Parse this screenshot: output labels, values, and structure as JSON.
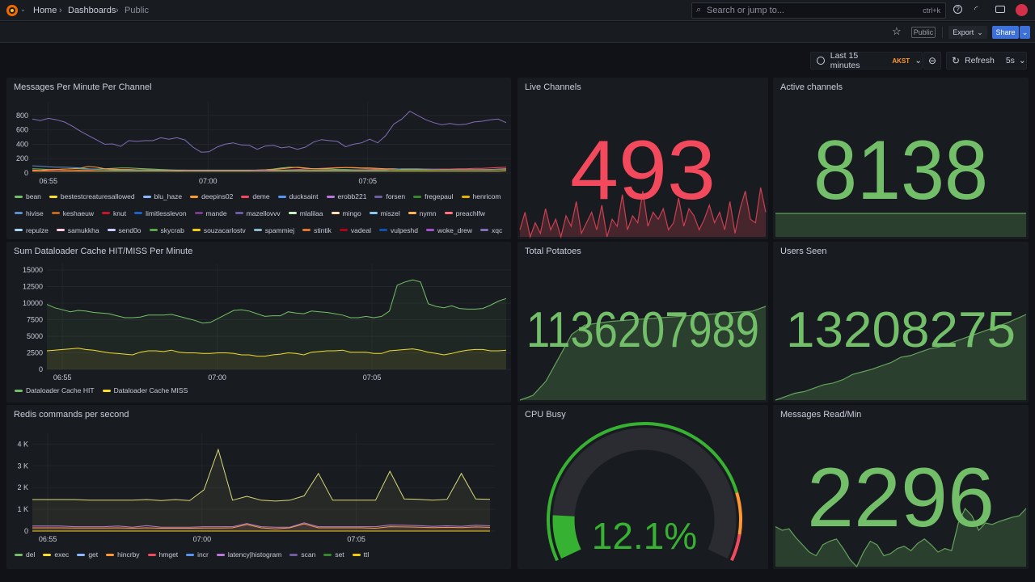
{
  "nav": {
    "breadcrumb": [
      "Home",
      "Dashboards",
      "Public"
    ],
    "search_placeholder": "Search or jump to...",
    "search_shortcut": "ctrl+k"
  },
  "toolbar": {
    "public_badge": "Public",
    "export_label": "Export",
    "share_label": "Share"
  },
  "time": {
    "range_label": "Last 15 minutes",
    "timezone": "AKST",
    "refresh_label": "Refresh",
    "refresh_interval": "5s"
  },
  "colors": {
    "green": "#73bf69",
    "red": "#f2495c",
    "orange": "#ff9830",
    "blue": "#3d71d9",
    "bg": "#111217",
    "panel": "#181b1f"
  },
  "panels": {
    "messages": {
      "title": "Messages Per Minute Per Channel"
    },
    "cache": {
      "title": "Sum Dataloader Cache HIT/MISS Per Minute"
    },
    "redis": {
      "title": "Redis commands per second"
    },
    "live": {
      "title": "Live Channels",
      "value": "493",
      "color": "#f2495c",
      "sparkline": [
        30,
        55,
        20,
        40,
        25,
        60,
        30,
        45,
        20,
        50,
        35,
        70,
        25,
        40,
        55,
        30,
        65,
        20,
        45,
        35,
        80,
        30,
        50,
        40,
        85,
        35,
        55,
        45,
        60,
        30,
        40,
        75,
        35,
        60,
        50,
        30,
        45,
        65,
        40,
        55,
        30,
        70,
        25,
        60,
        85,
        45,
        40,
        90,
        55
      ]
    },
    "active": {
      "title": "Active channels",
      "value": "8138",
      "color": "#73bf69",
      "sparkline": [
        50,
        50,
        50,
        50,
        50,
        50,
        50,
        50,
        50,
        50
      ]
    },
    "potatoes": {
      "title": "Total Potatoes",
      "value": "1136207989",
      "color": "#73bf69",
      "sparkline": [
        0,
        5,
        20,
        45,
        70,
        80,
        82,
        84,
        85,
        86,
        87,
        88,
        89,
        90,
        91,
        92,
        93,
        94,
        95,
        100
      ]
    },
    "users": {
      "title": "Users Seen",
      "value": "13208275",
      "color": "#73bf69",
      "sparkline": [
        0,
        4,
        8,
        10,
        14,
        18,
        20,
        24,
        30,
        33,
        36,
        40,
        44,
        50,
        52,
        56,
        60,
        62,
        66,
        70,
        74,
        78,
        82,
        86,
        90,
        95,
        100
      ]
    },
    "cpu": {
      "title": "CPU Busy",
      "value": "12.1%",
      "percent": 12.1,
      "thresholds": [
        {
          "color": "#37b131",
          "to": 82
        },
        {
          "color": "#ff9830",
          "to": 93
        },
        {
          "color": "#f2495c",
          "to": 100
        }
      ]
    },
    "read": {
      "title": "Messages Read/Min",
      "value": "2296",
      "color": "#73bf69",
      "sparkline": [
        55,
        50,
        52,
        40,
        30,
        20,
        15,
        30,
        35,
        38,
        25,
        10,
        0,
        20,
        35,
        30,
        15,
        18,
        25,
        28,
        22,
        32,
        38,
        30,
        20,
        25,
        22,
        60,
        80,
        70,
        50,
        60,
        58,
        62,
        65,
        68,
        70,
        80
      ]
    }
  },
  "chart_data": [
    {
      "type": "line",
      "title": "Messages Per Minute Per Channel",
      "x_range": [
        "06:54:30",
        "07:09:20"
      ],
      "x_ticks": [
        "06:55",
        "07:00",
        "07:05"
      ],
      "y_ticks": [
        "0",
        "200",
        "400",
        "600",
        "800"
      ],
      "ylim": [
        0,
        900
      ],
      "grid": true,
      "legend": "bottom",
      "legend_items": [
        [
          "bean",
          "#73bf69"
        ],
        [
          "bestestcreaturesallowed",
          "#fade2a"
        ],
        [
          "blu_haze",
          "#8ab8ff"
        ],
        [
          "deepins02",
          "#ff9830"
        ],
        [
          "deme",
          "#f2495c"
        ],
        [
          "ducksaint",
          "#5794f2"
        ],
        [
          "erobb221",
          "#b877d9"
        ],
        [
          "forsen",
          "#705da0"
        ],
        [
          "fregepaul",
          "#37872d"
        ],
        [
          "henricom",
          "#e0b400"
        ],
        [
          "hivise",
          "#5e8ec9"
        ],
        [
          "keshaeuw",
          "#c4641d"
        ],
        [
          "knut",
          "#c4162a"
        ],
        [
          "limitlesslevon",
          "#1f60c4"
        ],
        [
          "mande",
          "#7a3b8f"
        ],
        [
          "mazellovvv",
          "#6c5ca8"
        ],
        [
          "mlalilaa",
          "#c8f2c2"
        ],
        [
          "mingo",
          "#ffe0b2"
        ],
        [
          "miszel",
          "#8ac8f0"
        ],
        [
          "nymn",
          "#ffb357"
        ],
        [
          "preachlfw",
          "#ff7383"
        ],
        [
          "repulze",
          "#a8d4f0"
        ],
        [
          "samukkha",
          "#ffcce0"
        ],
        [
          "send0o",
          "#ccccff"
        ],
        [
          "skycrab",
          "#56a64b"
        ],
        [
          "souzacarlostv",
          "#f2cc0c"
        ],
        [
          "spammiej",
          "#8ab8d0"
        ],
        [
          "stintik",
          "#e0752d"
        ],
        [
          "vadeal",
          "#ad0317"
        ],
        [
          "vulpeshd",
          "#1250b0"
        ],
        [
          "woke_drew",
          "#a352cc"
        ],
        [
          "xqc",
          "#806eb7"
        ]
      ],
      "series": [
        {
          "name": "xqc",
          "color": "#806eb7",
          "values": [
            750,
            730,
            760,
            740,
            710,
            650,
            580,
            520,
            460,
            400,
            405,
            370,
            450,
            440,
            450,
            450,
            490,
            470,
            490,
            460,
            360,
            290,
            295,
            360,
            400,
            420,
            390,
            385,
            330,
            375,
            385,
            350,
            365,
            330,
            360,
            430,
            465,
            450,
            440,
            365,
            400,
            420,
            470,
            420,
            520,
            680,
            750,
            860,
            800,
            740,
            700,
            670,
            690,
            670,
            680,
            710,
            720,
            740,
            750,
            700
          ]
        },
        {
          "name": "hivise",
          "color": "#5e8ec9",
          "values": [
            100,
            95,
            85,
            80,
            80,
            75,
            70,
            60,
            50,
            45,
            40,
            40,
            40,
            40,
            40,
            40,
            40,
            40,
            40,
            40,
            40,
            40,
            40,
            40,
            40,
            40,
            40,
            40,
            40,
            40,
            40,
            40,
            40,
            40,
            40,
            40,
            40,
            40,
            40,
            40,
            40,
            40,
            40,
            40,
            40,
            50,
            60,
            60,
            60,
            55,
            50,
            45,
            45,
            45,
            45,
            45,
            45,
            45,
            50,
            50
          ]
        },
        {
          "name": "deepins02",
          "color": "#ff9830",
          "values": [
            40,
            35,
            45,
            50,
            55,
            60,
            70,
            90,
            80,
            60,
            55,
            50,
            50,
            45,
            45,
            40,
            40,
            40,
            35,
            35,
            35,
            35,
            35,
            35,
            35,
            35,
            35,
            35,
            40,
            45,
            50,
            60,
            70,
            80,
            70,
            60,
            60,
            65,
            70,
            75,
            75,
            70,
            70,
            65,
            60,
            60,
            55,
            55,
            55,
            50,
            50,
            50,
            50,
            50,
            50,
            50,
            50,
            50,
            55,
            60
          ]
        },
        {
          "name": "bean",
          "color": "#73bf69",
          "values": [
            60,
            55,
            50,
            50,
            55,
            60,
            60,
            55,
            55,
            60,
            65,
            70,
            70,
            65,
            60,
            55,
            50,
            45,
            40,
            40,
            35,
            35,
            35,
            35,
            35,
            35,
            35,
            35,
            40,
            45,
            55,
            70,
            80,
            75,
            65,
            60,
            55,
            55,
            50,
            50,
            45,
            45,
            45,
            45,
            45,
            45,
            45,
            45,
            45,
            45,
            45,
            45,
            45,
            45,
            45,
            45,
            45,
            50,
            50,
            55
          ]
        },
        {
          "name": "deme",
          "color": "#f2495c",
          "values": [
            30,
            30,
            30,
            30,
            35,
            35,
            40,
            40,
            45,
            45,
            50,
            50,
            50,
            45,
            45,
            40,
            40,
            35,
            35,
            30,
            30,
            30,
            30,
            30,
            30,
            30,
            30,
            30,
            30,
            30,
            35,
            40,
            45,
            50,
            55,
            60,
            65,
            70,
            75,
            75,
            70,
            65,
            60,
            55,
            55,
            55,
            55,
            55,
            55,
            55,
            55,
            55,
            55,
            60,
            60,
            65,
            65,
            70,
            75,
            80
          ]
        },
        {
          "name": "bestestcreaturesallowed",
          "color": "#fade2a",
          "values": [
            25,
            25,
            25,
            25,
            25,
            25,
            25,
            25,
            25,
            25,
            25,
            25,
            25,
            25,
            25,
            25,
            25,
            25,
            25,
            25,
            25,
            25,
            25,
            25,
            25,
            25,
            25,
            25,
            25,
            25,
            25,
            25,
            25,
            25,
            25,
            25,
            25,
            25,
            25,
            25,
            25,
            25,
            25,
            25,
            25,
            25,
            25,
            25,
            25,
            25,
            25,
            25,
            25,
            25,
            25,
            25,
            25,
            25,
            25,
            30
          ]
        }
      ]
    },
    {
      "type": "area",
      "title": "Sum Dataloader Cache HIT/MISS Per Minute",
      "x_range": [
        "06:54:30",
        "07:09:20"
      ],
      "x_ticks": [
        "06:55",
        "07:00",
        "07:05"
      ],
      "y_ticks": [
        "0",
        "2500",
        "5000",
        "7500",
        "10000",
        "12500",
        "15000"
      ],
      "ylim": [
        0,
        15000
      ],
      "grid": true,
      "legend": "bottom",
      "series": [
        {
          "name": "Dataloader Cache HIT",
          "color": "#73bf69",
          "values": [
            9800,
            9300,
            9000,
            8700,
            8900,
            8800,
            8600,
            8500,
            8400,
            8100,
            7800,
            7800,
            7900,
            8200,
            8200,
            8200,
            8300,
            8000,
            7700,
            7400,
            7000,
            7100,
            7700,
            8300,
            8900,
            9000,
            8800,
            8400,
            8000,
            8100,
            8100,
            8700,
            8500,
            8400,
            8800,
            8700,
            8600,
            8400,
            8200,
            7800,
            7800,
            8000,
            7800,
            8000,
            8800,
            12700,
            13200,
            13500,
            13200,
            9900,
            9500,
            9300,
            9600,
            9200,
            9100,
            9100,
            9200,
            9700,
            10300,
            10700
          ]
        },
        {
          "name": "Dataloader Cache MISS",
          "color": "#fade2a",
          "values": [
            2800,
            2900,
            3000,
            3100,
            3200,
            3000,
            2900,
            2700,
            2500,
            2400,
            2300,
            2200,
            2600,
            2800,
            2800,
            2700,
            2900,
            2600,
            2500,
            2500,
            2400,
            2400,
            2500,
            2500,
            2400,
            2200,
            2200,
            2000,
            2000,
            2200,
            2300,
            2500,
            2400,
            2200,
            2600,
            2700,
            2800,
            2800,
            2900,
            2600,
            2600,
            2600,
            2400,
            2400,
            2800,
            2900,
            3000,
            3100,
            2900,
            2600,
            2400,
            2200,
            2400,
            2700,
            2900,
            3000,
            3000,
            2800,
            2800,
            2900
          ]
        }
      ]
    },
    {
      "type": "area",
      "title": "Redis commands per second",
      "x_range": [
        "06:54:30",
        "07:09:20"
      ],
      "x_ticks": [
        "06:55",
        "07:00",
        "07:05"
      ],
      "y_ticks": [
        "0",
        "1 K",
        "2 K",
        "3 K",
        "4 K"
      ],
      "ylim": [
        0,
        4200
      ],
      "grid": true,
      "legend": "bottom",
      "legend_items": [
        [
          "del",
          "#73bf69"
        ],
        [
          "exec",
          "#fade2a"
        ],
        [
          "get",
          "#8ab8ff"
        ],
        [
          "hincrby",
          "#ff9830"
        ],
        [
          "hmget",
          "#f2495c"
        ],
        [
          "incr",
          "#5794f2"
        ],
        [
          "latency|histogram",
          "#b877d9"
        ],
        [
          "scan",
          "#705da0"
        ],
        [
          "set",
          "#37872d"
        ],
        [
          "ttl",
          "#f2cc0c"
        ]
      ],
      "series": [
        {
          "name": "exec",
          "color": "#d8d97a",
          "values": [
            1450,
            1450,
            1450,
            1450,
            1420,
            1420,
            1420,
            1420,
            1450,
            1400,
            1450,
            1400,
            1900,
            3750,
            1420,
            1600,
            1420,
            1380,
            1420,
            1620,
            2650,
            1420,
            1420,
            1420,
            1420,
            2750,
            1480,
            1460,
            1420,
            1460,
            2650,
            1480,
            1460
          ]
        },
        {
          "name": "latency|histogram",
          "color": "#b877d9",
          "values": [
            230,
            230,
            230,
            200,
            200,
            200,
            230,
            180,
            250,
            180,
            180,
            180,
            200,
            200,
            200,
            350,
            200,
            180,
            180,
            380,
            200,
            200,
            200,
            200,
            200,
            280,
            270,
            250,
            220,
            240,
            220,
            270,
            240
          ]
        },
        {
          "name": "hincrby",
          "color": "#ff9830",
          "values": [
            150,
            150,
            150,
            140,
            140,
            140,
            150,
            130,
            150,
            130,
            130,
            130,
            140,
            140,
            150,
            300,
            150,
            100,
            150,
            330,
            150,
            150,
            150,
            150,
            130,
            200,
            190,
            180,
            160,
            170,
            160,
            190,
            170
          ]
        },
        {
          "name": "ttl",
          "color": "#f2cc0c",
          "values": [
            0,
            0,
            0,
            0,
            0,
            0,
            0,
            0,
            0,
            0,
            0,
            0,
            0,
            0,
            0,
            0,
            0,
            0,
            0,
            0,
            0,
            0,
            0,
            0,
            0,
            0,
            0,
            0,
            0,
            0,
            0,
            0,
            0
          ]
        }
      ]
    }
  ]
}
